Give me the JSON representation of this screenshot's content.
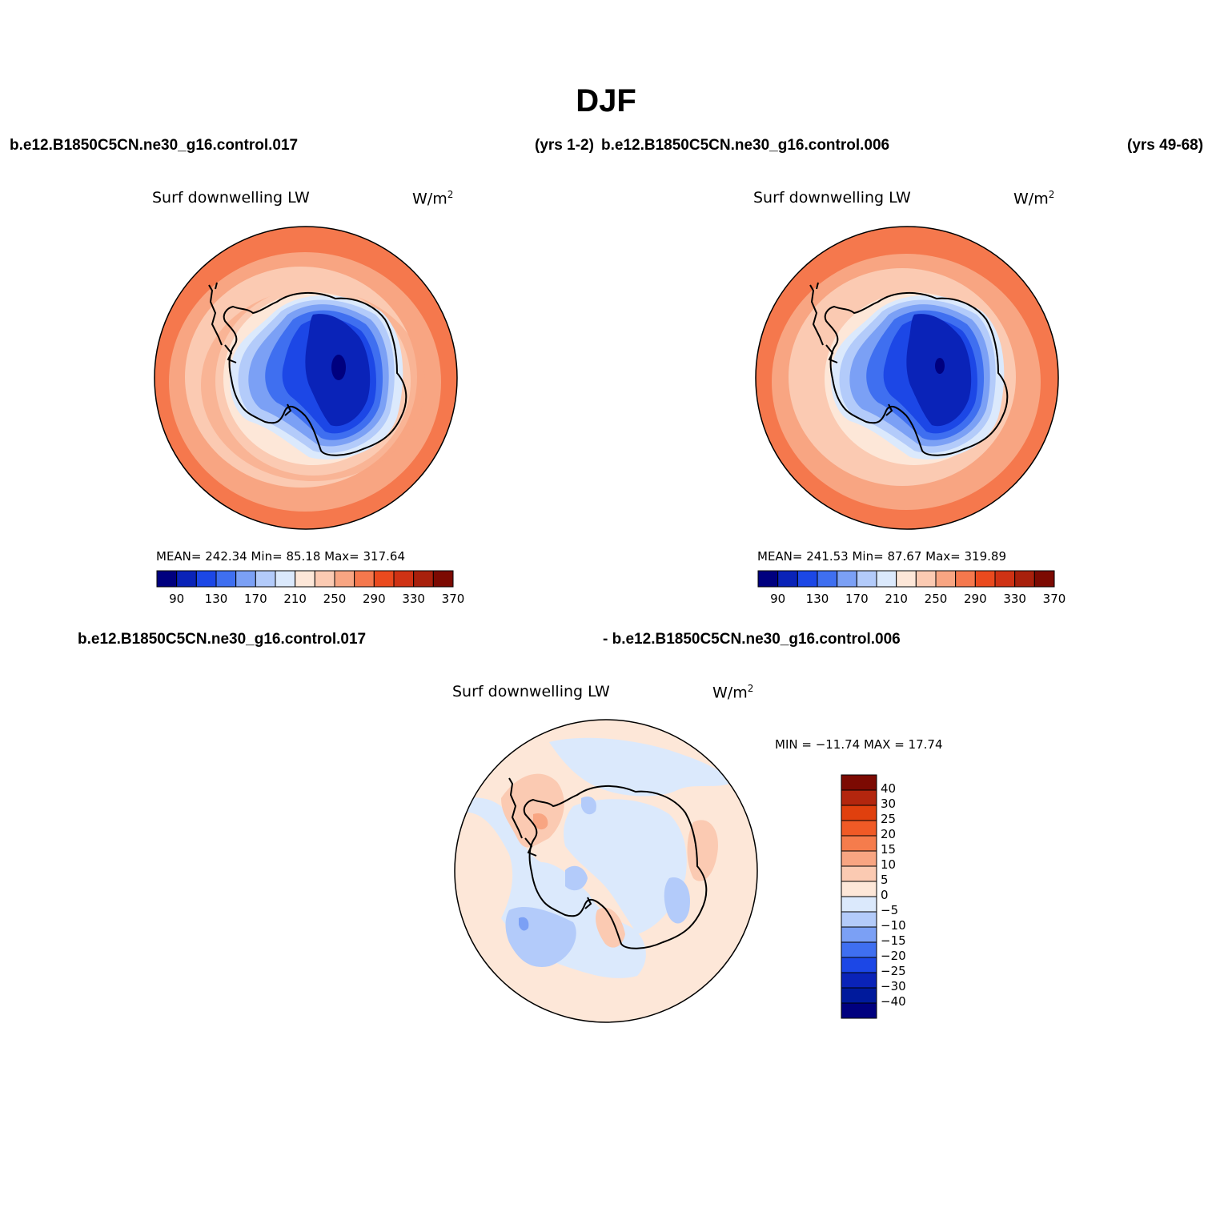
{
  "title": "DJF",
  "header": {
    "case_left": "b.e12.B1850C5CN.ne30_g16.control.017",
    "years_left": "(yrs 1-2)",
    "case_right": "b.e12.B1850C5CN.ne30_g16.control.006",
    "years_right": "(yrs 49-68)"
  },
  "panels": [
    {
      "title": "Surf downwelling LW",
      "units": "W/m",
      "units_exp": "2",
      "stats": "MEAN= 242.34  Min=  85.18  Max= 317.64"
    },
    {
      "title": "Surf downwelling LW",
      "units": "W/m",
      "units_exp": "2",
      "stats": "MEAN= 241.53  Min=  87.67  Max= 319.89"
    }
  ],
  "diff": {
    "label_a": "b.e12.B1850C5CN.ne30_g16.control.017",
    "label_b": "- b.e12.B1850C5CN.ne30_g16.control.006",
    "title": "Surf downwelling LW",
    "units": "W/m",
    "units_exp": "2",
    "stats": "MIN = −11.74 MAX =  17.74"
  },
  "colorbar_abs": {
    "ticks": [
      "90",
      "130",
      "170",
      "210",
      "250",
      "290",
      "330",
      "370"
    ],
    "colors": [
      "#00007f",
      "#0a23b8",
      "#1c47e6",
      "#3f6ff0",
      "#7ba0f5",
      "#b3cbfa",
      "#dbe9fc",
      "#fde7d8",
      "#fbcab2",
      "#f8a582",
      "#f5784d",
      "#ea4a1e",
      "#cf3214",
      "#a8200c",
      "#7c0a02"
    ]
  },
  "colorbar_diff": {
    "ticks": [
      "40",
      "30",
      "25",
      "20",
      "15",
      "10",
      "5",
      "0",
      "−5",
      "−10",
      "−15",
      "−20",
      "−25",
      "−30",
      "−40"
    ],
    "colors": [
      "#7c0a02",
      "#b3260e",
      "#e0400e",
      "#f05a26",
      "#f57c4c",
      "#f8a582",
      "#fbcab2",
      "#fde7d8",
      "#dbe9fc",
      "#b3cbfa",
      "#7ba0f5",
      "#3f6ff0",
      "#1c47e6",
      "#0a23b8",
      "#001a9c",
      "#00007f"
    ]
  }
}
